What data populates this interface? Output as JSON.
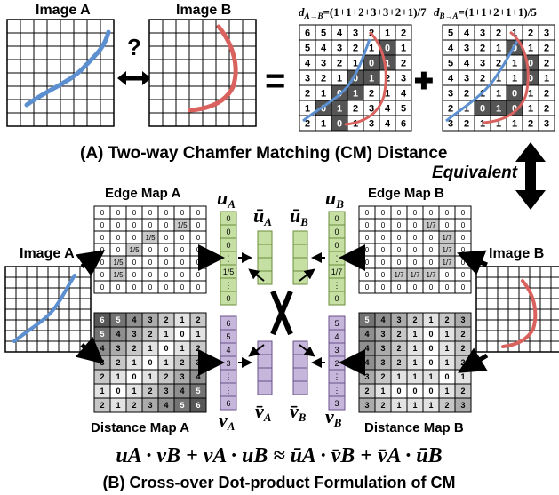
{
  "labels": {
    "image_a": "Image A",
    "image_b": "Image B",
    "d_ab": "d",
    "d_ab_sub": "A→B",
    "d_ab_expr": "=(1+1+2+3+3+2+1)/7",
    "d_ba": "d",
    "d_ba_sub": "B→A",
    "d_ba_expr": "=(1+1+2+1+1)/5",
    "question": "?",
    "equals": "=",
    "plus": "✚",
    "title_a": "(A) Two-way Chamfer Matching (CM) Distance",
    "equivalent": "Equivalent",
    "edge_map_a": "Edge Map A",
    "edge_map_b": "Edge Map B",
    "dist_map_a": "Distance Map A",
    "dist_map_b": "Distance Map B",
    "u_a": "u",
    "u_a_sub": "A",
    "u_b": "u",
    "u_b_sub": "B",
    "ubar_a": "ū",
    "ubar_a_sub": "A",
    "ubar_b": "ū",
    "ubar_b_sub": "B",
    "v_a": "v",
    "v_a_sub": "A",
    "v_b": "v",
    "v_b_sub": "B",
    "vbar_a": "v̄",
    "vbar_a_sub": "A",
    "vbar_b": "v̄",
    "vbar_b_sub": "B",
    "formula": "uA · vB + vA · uB ≈ ūA · v̄B + v̄A · ūB",
    "title_b": "(B) Cross-over Dot-product Formulation of CM"
  },
  "grids": {
    "dist_map_top_a": [
      [
        "6",
        "5",
        "4",
        "3",
        "2",
        "1",
        "2"
      ],
      [
        "5",
        "4",
        "3",
        "2",
        "1",
        "0",
        "1"
      ],
      [
        "4",
        "3",
        "2",
        "1",
        "0",
        "1",
        "2"
      ],
      [
        "3",
        "2",
        "1",
        "0",
        "1",
        "2",
        "3"
      ],
      [
        "2",
        "1",
        "0",
        "1",
        "2",
        "1",
        "4"
      ],
      [
        "1",
        "0",
        "1",
        "2",
        "3",
        "4",
        "5"
      ],
      [
        "2",
        "1",
        "0",
        "1",
        "3",
        "4",
        "6"
      ]
    ],
    "dist_map_top_b": [
      [
        "5",
        "4",
        "3",
        "2",
        "1",
        "2",
        "3"
      ],
      [
        "4",
        "3",
        "2",
        "1",
        "0",
        "1",
        "2"
      ],
      [
        "5",
        "4",
        "3",
        "2",
        "1",
        "0",
        "2"
      ],
      [
        "4",
        "3",
        "2",
        "1",
        "1",
        "0",
        "1"
      ],
      [
        "3",
        "2",
        "1",
        "1",
        "0",
        "1",
        "2"
      ],
      [
        "2",
        "1",
        "0",
        "1",
        "0",
        "1",
        "2"
      ],
      [
        "3",
        "2",
        "1",
        "1",
        "1",
        "2",
        "3"
      ]
    ],
    "edge_map_a": [
      [
        "0",
        "0",
        "0",
        "0",
        "0",
        "0",
        "0"
      ],
      [
        "0",
        "0",
        "0",
        "0",
        "0",
        "1/5",
        "0"
      ],
      [
        "0",
        "0",
        "0",
        "1/5",
        "0",
        "0",
        "0"
      ],
      [
        "0",
        "0",
        "1/5",
        "0",
        "0",
        "0",
        "0"
      ],
      [
        "0",
        "1/5",
        "0",
        "0",
        "0",
        "0",
        "0"
      ],
      [
        "0",
        "1/5",
        "0",
        "0",
        "0",
        "0",
        "0"
      ],
      [
        "0",
        "0",
        "0",
        "0",
        "0",
        "0",
        "0"
      ]
    ],
    "edge_map_b": [
      [
        "0",
        "0",
        "0",
        "0",
        "0",
        "0",
        "0"
      ],
      [
        "0",
        "0",
        "0",
        "0",
        "1/7",
        "0",
        "0"
      ],
      [
        "0",
        "0",
        "0",
        "0",
        "0",
        "1/7",
        "0"
      ],
      [
        "0",
        "0",
        "0",
        "0",
        "0",
        "1/7",
        "0"
      ],
      [
        "0",
        "0",
        "0",
        "0",
        "0",
        "1/7",
        "0"
      ],
      [
        "0",
        "0",
        "1/7",
        "1/7",
        "1/7",
        "0",
        "0"
      ],
      [
        "0",
        "0",
        "0",
        "0",
        "0",
        "0",
        "0"
      ]
    ],
    "dist_map_a": [
      [
        "6",
        "5",
        "4",
        "3",
        "2",
        "1",
        "2"
      ],
      [
        "5",
        "4",
        "3",
        "2",
        "1",
        "0",
        "1"
      ],
      [
        "4",
        "3",
        "2",
        "1",
        "0",
        "1",
        "2"
      ],
      [
        "3",
        "2",
        "1",
        "0",
        "1",
        "2",
        "3"
      ],
      [
        "2",
        "1",
        "0",
        "1",
        "2",
        "3",
        "4"
      ],
      [
        "1",
        "0",
        "1",
        "2",
        "3",
        "4",
        "5"
      ],
      [
        "2",
        "1",
        "2",
        "3",
        "4",
        "5",
        "6"
      ]
    ],
    "dist_map_b": [
      [
        "5",
        "4",
        "3",
        "2",
        "1",
        "2",
        "3"
      ],
      [
        "4",
        "3",
        "2",
        "1",
        "0",
        "1",
        "2"
      ],
      [
        "4",
        "3",
        "2",
        "1",
        "0",
        "1",
        "2"
      ],
      [
        "4",
        "3",
        "2",
        "1",
        "0",
        "1",
        "2"
      ],
      [
        "3",
        "2",
        "1",
        "1",
        "1",
        "0",
        "1"
      ],
      [
        "2",
        "1",
        "0",
        "0",
        "0",
        "1",
        "2"
      ],
      [
        "3",
        "2",
        "1",
        "1",
        "1",
        "2",
        "3"
      ]
    ]
  },
  "vectors": {
    "u_a": [
      "0",
      "0",
      "0",
      "⋮",
      "1/5",
      "⋮",
      "0"
    ],
    "u_b": [
      "0",
      "0",
      "0",
      "⋮",
      "1/7",
      "⋮",
      "0"
    ],
    "v_a": [
      "6",
      "5",
      "4",
      "3",
      "⋮",
      "⋮",
      "6"
    ],
    "v_b": [
      "5",
      "4",
      "3",
      "2",
      "⋮",
      "⋮",
      "3"
    ]
  },
  "colors": {
    "edge_curve_a": "#5b8fd0",
    "edge_curve_b": "#d9625f",
    "vec_u": "#c6e0a4",
    "vec_u_border": "#6a8c3a",
    "vec_v": "#c7b6dc",
    "vec_v_border": "#6a528a",
    "dark_cell": "#555555"
  }
}
